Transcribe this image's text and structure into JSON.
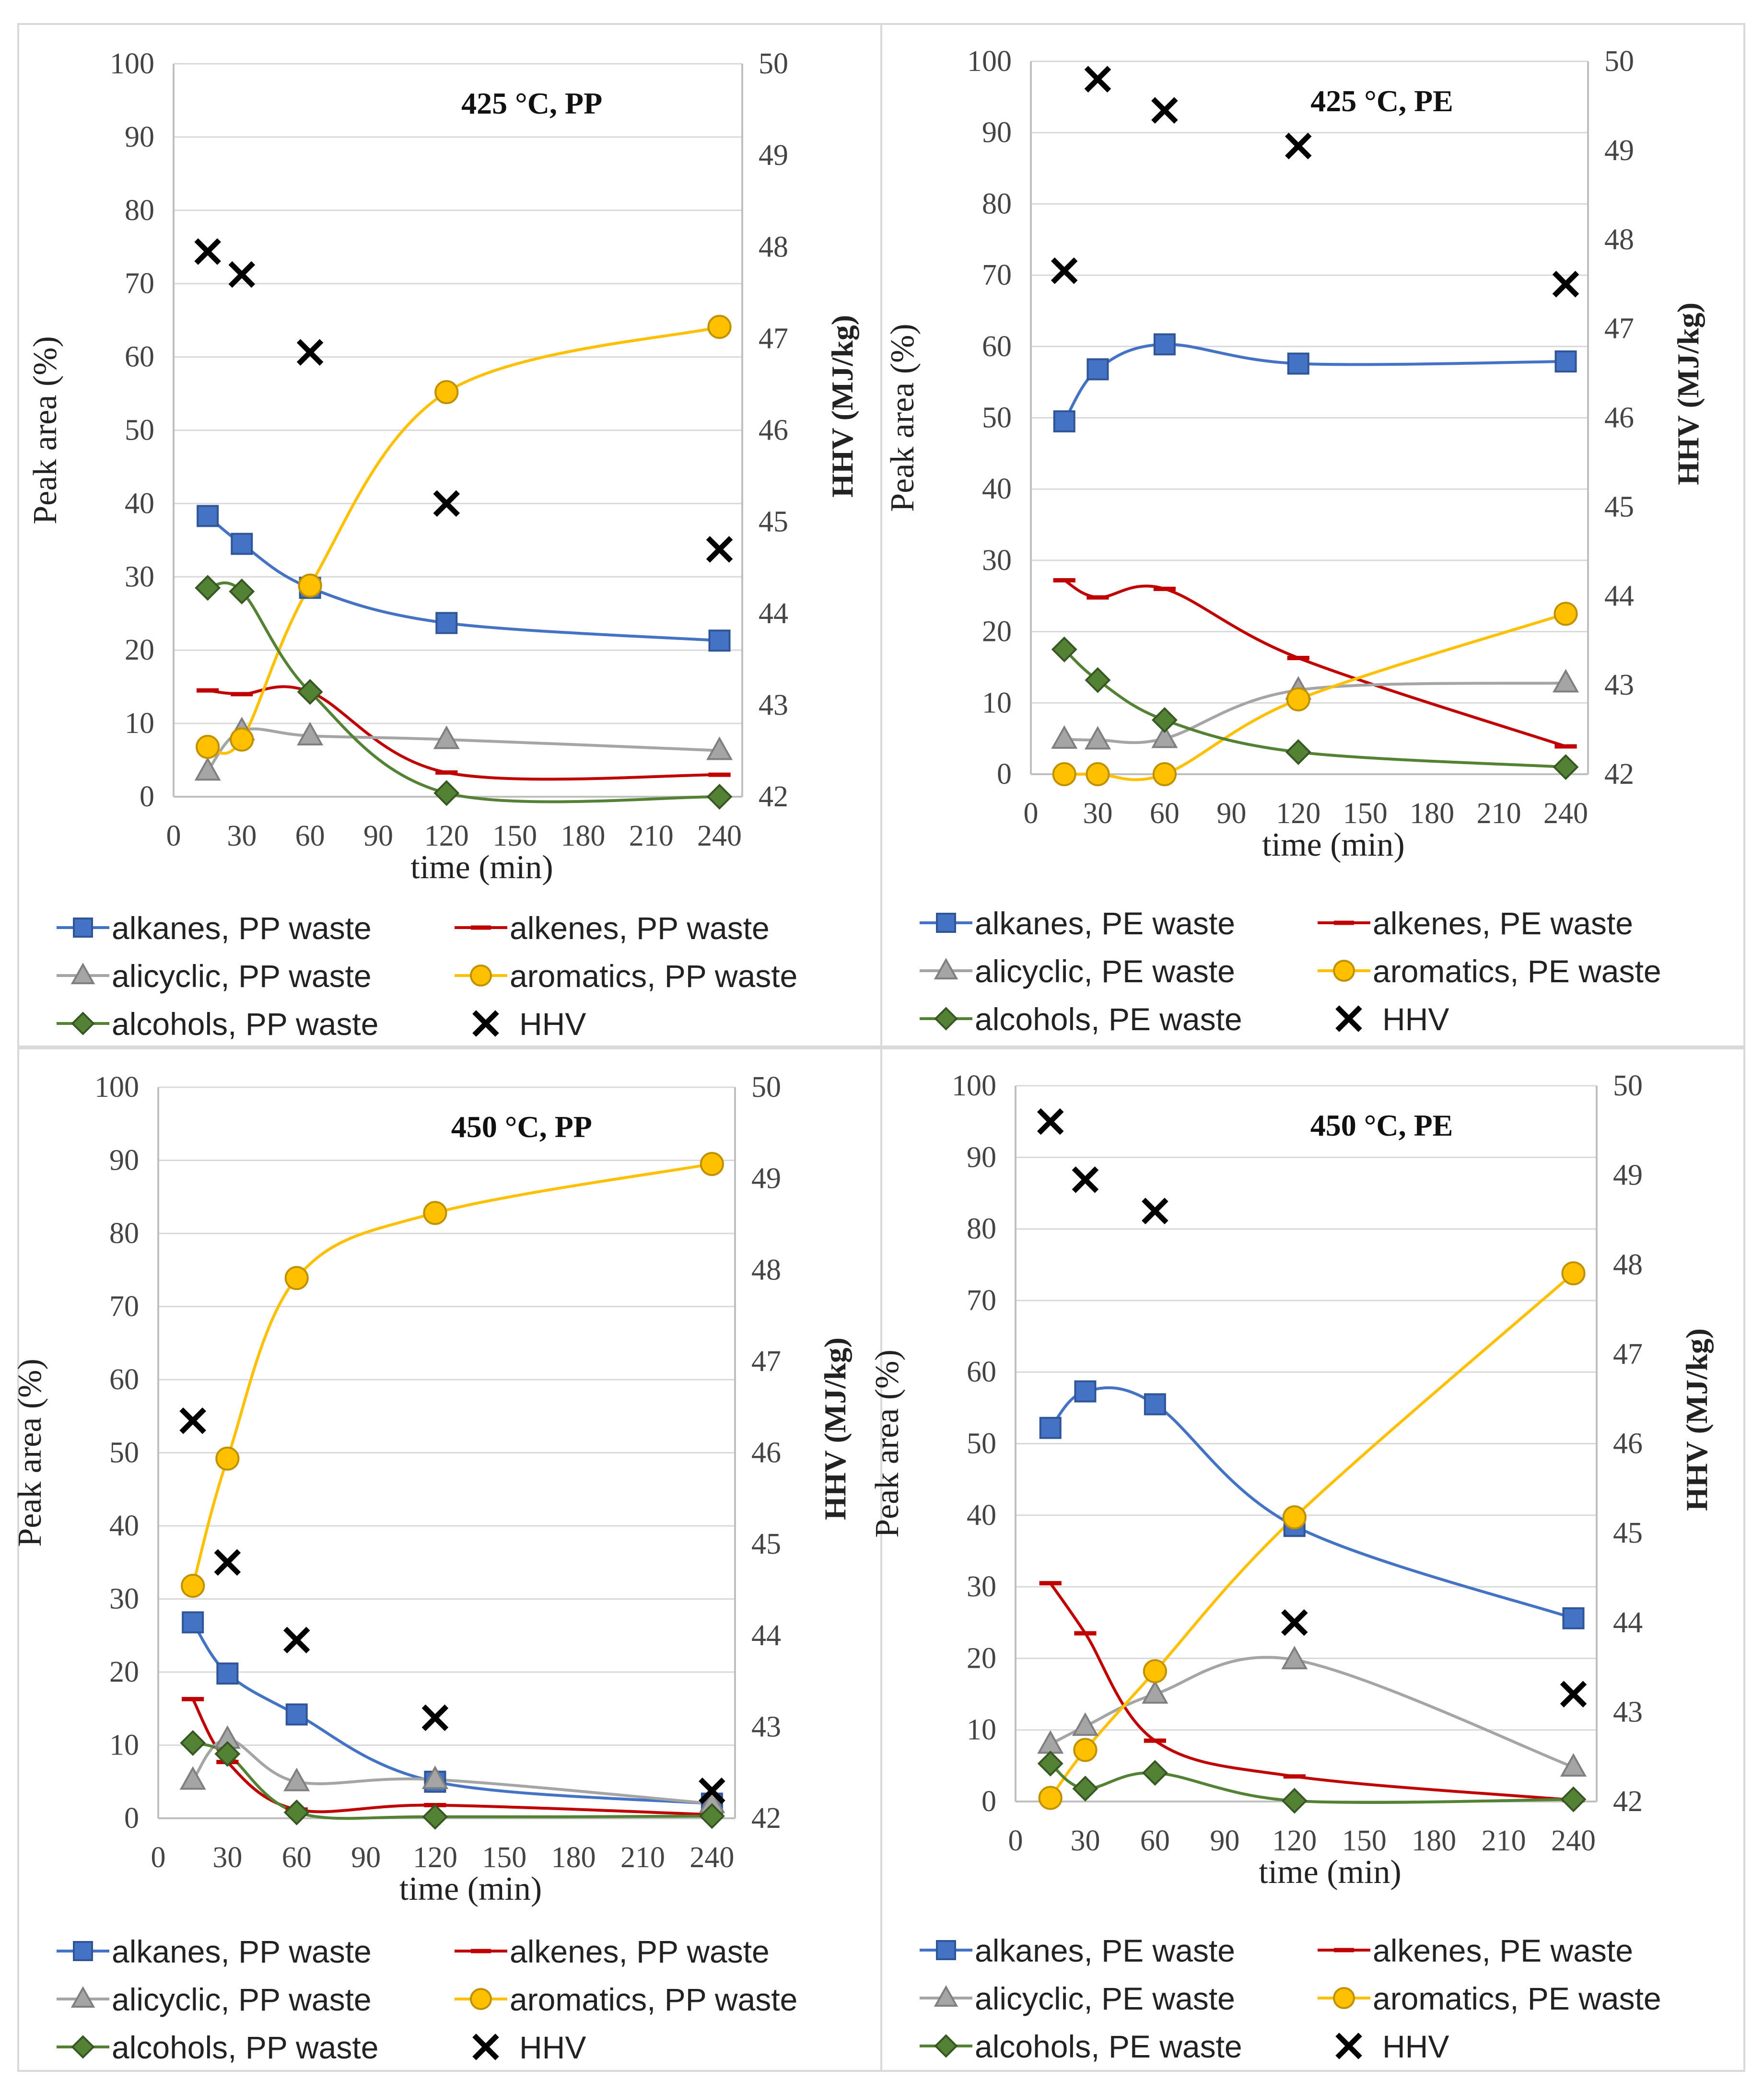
{
  "chart_data": [
    {
      "type": "line",
      "title": "425 °C, PP",
      "xlabel": "time  (min)",
      "ylabel": "Peak area (%)",
      "y2label": "HHV (MJ/kg)",
      "x_ticks": [
        0,
        30,
        60,
        90,
        120,
        150,
        180,
        210,
        240
      ],
      "xlim": [
        0,
        250
      ],
      "ylim": [
        0,
        100
      ],
      "y_ticks": [
        0,
        10,
        20,
        30,
        40,
        50,
        60,
        70,
        80,
        90,
        100
      ],
      "y2lim": [
        42,
        50
      ],
      "y2_ticks": [
        42,
        43,
        44,
        45,
        46,
        47,
        48,
        49,
        50
      ],
      "series": [
        {
          "name": "alkanes, PP waste",
          "marker": "square",
          "color": "#4472C4",
          "x": [
            15,
            30,
            60,
            120,
            240
          ],
          "values": [
            38.3,
            34.5,
            28.5,
            23.7,
            21.3
          ]
        },
        {
          "name": "alkenes, PP waste",
          "marker": "dash",
          "color": "#C00000",
          "x": [
            15,
            30,
            60,
            120,
            240
          ],
          "values": [
            14.5,
            14.0,
            14.3,
            3.3,
            3.0
          ]
        },
        {
          "name": "alicyclic, PP waste",
          "marker": "triangle",
          "color": "#A5A5A5",
          "x": [
            15,
            30,
            60,
            120,
            240
          ],
          "values": [
            3.5,
            9.0,
            8.3,
            7.8,
            6.3
          ]
        },
        {
          "name": "aromatics, PP waste",
          "marker": "circle",
          "color": "#FFC000",
          "x": [
            15,
            30,
            60,
            120,
            240
          ],
          "values": [
            6.8,
            7.8,
            28.8,
            55.2,
            64.1
          ]
        },
        {
          "name": "alcohols, PP waste",
          "marker": "diamond",
          "color": "#548235",
          "x": [
            15,
            30,
            60,
            120,
            240
          ],
          "values": [
            28.5,
            28.0,
            14.3,
            0.5,
            0.0
          ]
        },
        {
          "name": "HHV",
          "marker": "x",
          "color": "#000000",
          "axis": "right",
          "x": [
            15,
            30,
            60,
            120,
            240
          ],
          "values": [
            47.95,
            47.7,
            46.85,
            45.2,
            44.7
          ]
        }
      ]
    },
    {
      "type": "line",
      "title": "425 °C, PE",
      "xlabel": "time  (min)",
      "ylabel": "Peak area (%)",
      "y2label": "HHV (MJ/kg)",
      "x_ticks": [
        0,
        30,
        60,
        90,
        120,
        150,
        180,
        210,
        240
      ],
      "xlim": [
        0,
        250
      ],
      "ylim": [
        0,
        100
      ],
      "y_ticks": [
        0,
        10,
        20,
        30,
        40,
        50,
        60,
        70,
        80,
        90,
        100
      ],
      "y2lim": [
        42,
        50
      ],
      "y2_ticks": [
        42,
        43,
        44,
        45,
        46,
        47,
        48,
        49,
        50
      ],
      "series": [
        {
          "name": "alkanes, PE waste",
          "marker": "square",
          "color": "#4472C4",
          "x": [
            15,
            30,
            60,
            120,
            240
          ],
          "values": [
            49.5,
            56.8,
            60.3,
            57.6,
            57.9
          ]
        },
        {
          "name": "alkenes, PE waste",
          "marker": "dash",
          "color": "#C00000",
          "x": [
            15,
            30,
            60,
            120,
            240
          ],
          "values": [
            27.2,
            24.8,
            26.0,
            16.3,
            3.9
          ]
        },
        {
          "name": "alicyclic, PE waste",
          "marker": "triangle",
          "color": "#A5A5A5",
          "x": [
            15,
            30,
            60,
            120,
            240
          ],
          "values": [
            4.9,
            4.8,
            5.0,
            11.8,
            12.8
          ]
        },
        {
          "name": "aromatics, PE waste",
          "marker": "circle",
          "color": "#FFC000",
          "x": [
            15,
            30,
            60,
            120,
            240
          ],
          "values": [
            0.0,
            0.0,
            0.0,
            10.5,
            22.5
          ]
        },
        {
          "name": "alcohols, PE waste",
          "marker": "diamond",
          "color": "#548235",
          "x": [
            15,
            30,
            60,
            120,
            240
          ],
          "values": [
            17.5,
            13.2,
            7.6,
            3.1,
            1.0
          ]
        },
        {
          "name": "HHV",
          "marker": "x",
          "color": "#000000",
          "axis": "right",
          "x": [
            15,
            30,
            60,
            120,
            240
          ],
          "values": [
            47.65,
            49.8,
            49.45,
            49.05,
            47.5
          ]
        }
      ]
    },
    {
      "type": "line",
      "title": "450 °C, PP",
      "xlabel": "time  (min)",
      "ylabel": "Peak area (%)",
      "y2label": "HHV (MJ/kg)",
      "x_ticks": [
        0,
        30,
        60,
        90,
        120,
        150,
        180,
        210,
        240
      ],
      "xlim": [
        0,
        250
      ],
      "ylim": [
        0,
        100
      ],
      "y_ticks": [
        0,
        10,
        20,
        30,
        40,
        50,
        60,
        70,
        80,
        90,
        100
      ],
      "y2lim": [
        42,
        50
      ],
      "y2_ticks": [
        42,
        43,
        44,
        45,
        46,
        47,
        48,
        49,
        50
      ],
      "series": [
        {
          "name": "alkanes, PP waste",
          "marker": "square",
          "color": "#4472C4",
          "x": [
            15,
            30,
            60,
            120,
            240
          ],
          "values": [
            26.8,
            19.8,
            14.2,
            5.0,
            2.0
          ]
        },
        {
          "name": "alkenes, PP waste",
          "marker": "dash",
          "color": "#C00000",
          "x": [
            15,
            30,
            60,
            120,
            240
          ],
          "values": [
            16.3,
            7.7,
            1.2,
            1.8,
            0.5
          ]
        },
        {
          "name": "alicyclic, PP waste",
          "marker": "triangle",
          "color": "#A5A5A5",
          "x": [
            15,
            30,
            60,
            120,
            240
          ],
          "values": [
            5.2,
            10.8,
            5.0,
            5.3,
            2.0
          ]
        },
        {
          "name": "aromatics, PP waste",
          "marker": "circle",
          "color": "#FFC000",
          "x": [
            15,
            30,
            60,
            120,
            240
          ],
          "values": [
            31.8,
            49.2,
            73.9,
            82.8,
            89.5
          ]
        },
        {
          "name": "alcohols, PP waste",
          "marker": "diamond",
          "color": "#548235",
          "x": [
            15,
            30,
            60,
            120,
            240
          ],
          "values": [
            10.3,
            8.8,
            0.8,
            0.2,
            0.3
          ]
        },
        {
          "name": "HHV",
          "marker": "x",
          "color": "#000000",
          "axis": "right",
          "x": [
            15,
            30,
            60,
            120,
            240
          ],
          "values": [
            46.35,
            44.8,
            43.95,
            43.1,
            42.3
          ]
        }
      ]
    },
    {
      "type": "line",
      "title": "450 °C, PE",
      "xlabel": "time  (min)",
      "ylabel": "Peak area (%)",
      "y2label": "HHV (MJ/kg)",
      "x_ticks": [
        0,
        30,
        60,
        90,
        120,
        150,
        180,
        210,
        240
      ],
      "xlim": [
        0,
        250
      ],
      "ylim": [
        0,
        100
      ],
      "y_ticks": [
        0,
        10,
        20,
        30,
        40,
        50,
        60,
        70,
        80,
        90,
        100
      ],
      "y2lim": [
        42,
        50
      ],
      "y2_ticks": [
        42,
        43,
        44,
        45,
        46,
        47,
        48,
        49,
        50
      ],
      "series": [
        {
          "name": "alkanes, PE waste",
          "marker": "square",
          "color": "#4472C4",
          "x": [
            15,
            30,
            60,
            120,
            240
          ],
          "values": [
            52.2,
            57.3,
            55.5,
            38.5,
            25.6
          ]
        },
        {
          "name": "alkenes, PE waste",
          "marker": "dash",
          "color": "#C00000",
          "x": [
            15,
            30,
            60,
            120,
            240
          ],
          "values": [
            30.5,
            23.5,
            8.5,
            3.5,
            0.2
          ]
        },
        {
          "name": "alicyclic, PE waste",
          "marker": "triangle",
          "color": "#A5A5A5",
          "x": [
            15,
            30,
            60,
            120,
            240
          ],
          "values": [
            8.0,
            10.5,
            15.0,
            19.8,
            4.8
          ]
        },
        {
          "name": "aromatics, PE waste",
          "marker": "circle",
          "color": "#FFC000",
          "x": [
            15,
            30,
            60,
            120,
            240
          ],
          "values": [
            0.5,
            7.2,
            18.2,
            39.7,
            73.8
          ]
        },
        {
          "name": "alcohols, PE waste",
          "marker": "diamond",
          "color": "#548235",
          "x": [
            15,
            30,
            60,
            120,
            240
          ],
          "values": [
            5.3,
            1.8,
            4.0,
            0.1,
            0.3
          ]
        },
        {
          "name": "HHV",
          "marker": "x",
          "color": "#000000",
          "axis": "right",
          "x": [
            15,
            30,
            60,
            120,
            240
          ],
          "values": [
            49.6,
            48.95,
            48.6,
            44.0,
            43.2
          ]
        }
      ]
    }
  ]
}
